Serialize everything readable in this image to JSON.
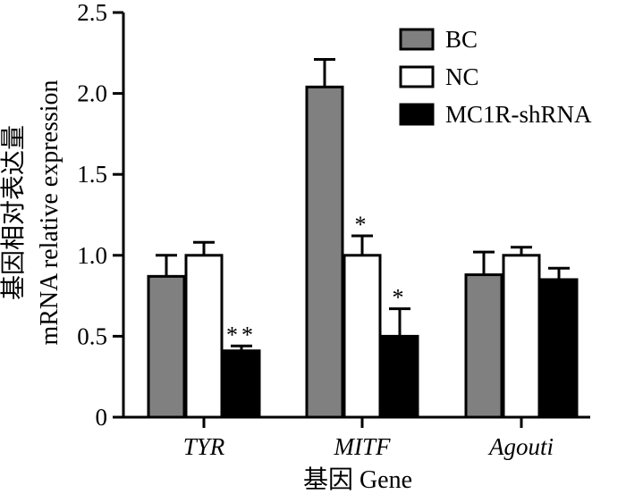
{
  "chart_data": {
    "type": "bar",
    "categories": [
      "TYR",
      "MITF",
      "Agouti"
    ],
    "series": [
      {
        "name": "BC",
        "values": [
          0.87,
          2.04,
          0.88
        ],
        "errors": [
          0.13,
          0.17,
          0.14
        ],
        "color": "#808080"
      },
      {
        "name": "NC",
        "values": [
          1.0,
          1.0,
          1.0
        ],
        "errors": [
          0.08,
          0.12,
          0.05
        ],
        "color": "#ffffff"
      },
      {
        "name": "MC1R-shRNA",
        "values": [
          0.41,
          0.5,
          0.85
        ],
        "errors": [
          0.03,
          0.17,
          0.07
        ],
        "color": "#000000"
      }
    ],
    "ylim": [
      0,
      2.5
    ],
    "yticks": [
      "0",
      "0.5",
      "1.0",
      "1.5",
      "2.0",
      "2.5"
    ],
    "ylabel_cn": "基因相对表达量",
    "ylabel": "mRNA relative expression",
    "xlabel": "基因 Gene",
    "legend_position": "top-right",
    "annotations": [
      {
        "category": 0,
        "series": 2,
        "text": "**"
      },
      {
        "category": 1,
        "series": 1,
        "text": "*"
      },
      {
        "category": 1,
        "series": 2,
        "text": "*"
      }
    ]
  }
}
